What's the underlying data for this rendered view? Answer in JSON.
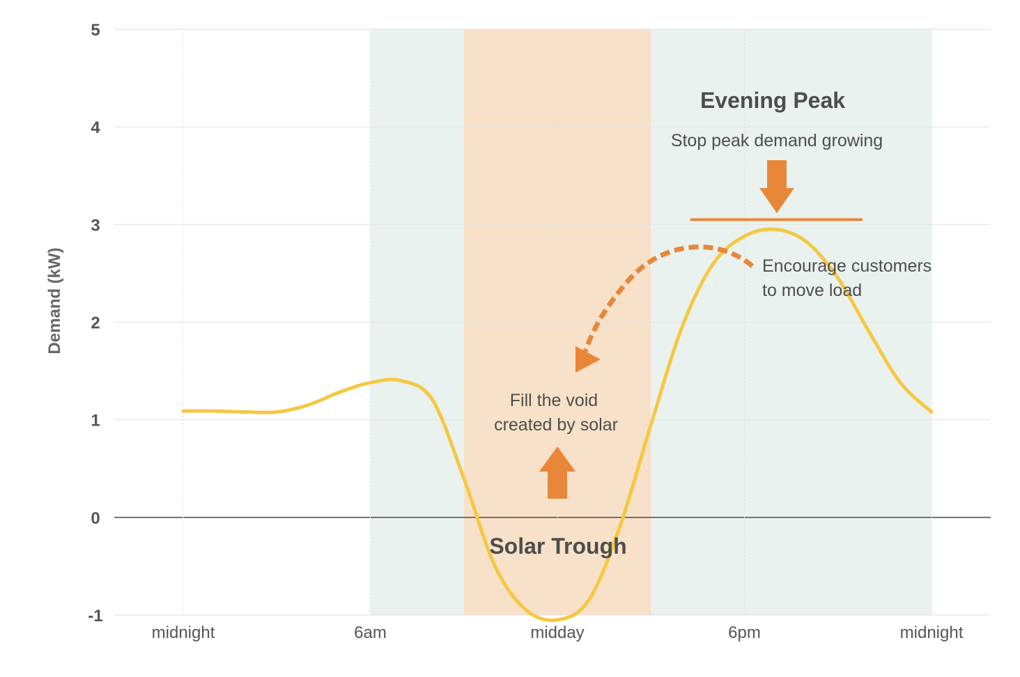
{
  "chart_data": {
    "type": "line",
    "title": "",
    "xlabel": "",
    "ylabel": "Demand (kW)",
    "ylim": [
      -1,
      5
    ],
    "yticks": [
      "5",
      "4",
      "3",
      "2",
      "1",
      "0",
      "-1"
    ],
    "xticks": [
      "midnight",
      "6am",
      "midday",
      "6pm",
      "midnight"
    ],
    "x_hours": [
      0,
      1,
      2,
      3,
      4,
      5,
      6,
      7,
      8,
      9,
      10,
      11,
      12,
      13,
      14,
      15,
      16,
      17,
      18,
      19,
      20,
      21,
      22,
      23,
      24
    ],
    "series": [
      {
        "values": [
          1.09,
          1.09,
          1.08,
          1.08,
          1.15,
          1.28,
          1.38,
          1.4,
          1.2,
          0.4,
          -0.5,
          -0.95,
          -1.05,
          -0.85,
          -0.1,
          0.95,
          1.95,
          2.6,
          2.88,
          2.95,
          2.82,
          2.45,
          1.9,
          1.38,
          1.08
        ],
        "color": "#f5c842"
      }
    ],
    "bands": [
      {
        "from_hour": 6,
        "to_hour": 9,
        "color": "#eaf2ef"
      },
      {
        "from_hour": 9,
        "to_hour": 15,
        "color": "#f8e1c9"
      },
      {
        "from_hour": 15,
        "to_hour": 24,
        "color": "#eaf2ef"
      }
    ],
    "annotations": {
      "evening_peak_title": "Evening Peak",
      "evening_peak_sub": "Stop peak demand growing",
      "peak_cap_value": 3.05,
      "encourage_line1": "Encourage customers",
      "encourage_line2": "to move load",
      "fill_line1": "Fill the void",
      "fill_line2": "created by solar",
      "solar_trough": "Solar Trough"
    },
    "grid": true,
    "legend": "none",
    "accent_color": "#e8873a"
  }
}
